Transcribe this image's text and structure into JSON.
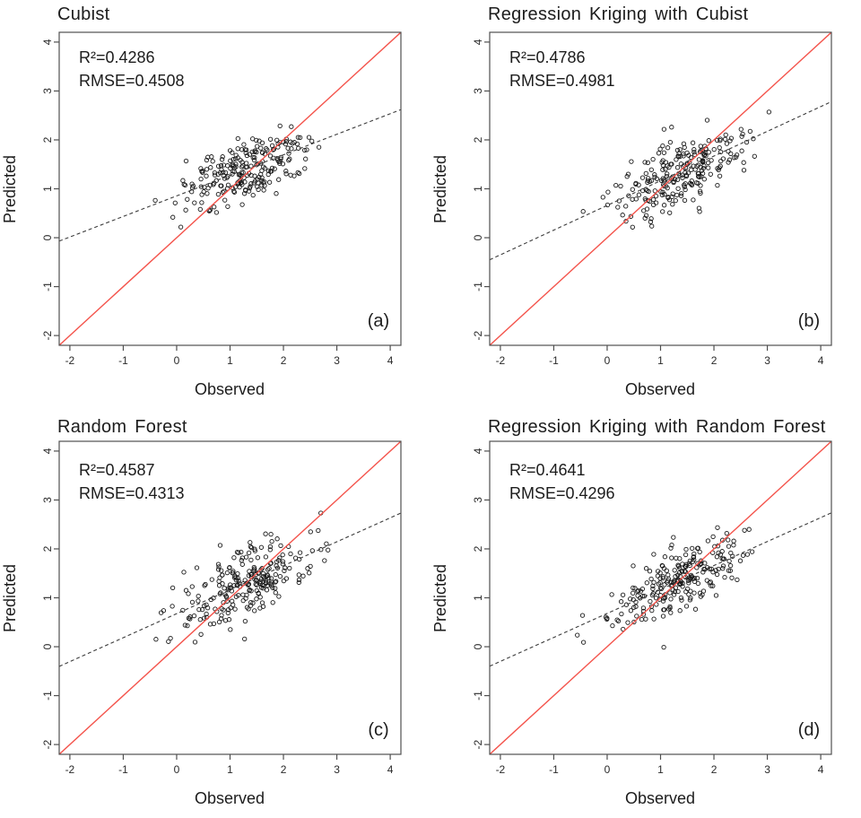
{
  "figure": {
    "background": "#ffffff",
    "axis_color": "#4f4f4f",
    "point_color": "#1a1a1a",
    "one_to_one_color": "#f4544c",
    "regression_color": "#3c3c3c"
  },
  "chart_data": [
    {
      "type": "scatter",
      "panel_label": "(a)",
      "title": "Cubist",
      "r2": 0.4286,
      "rmse": 0.4508,
      "r2_label": "R²=0.4286",
      "rmse_label": "RMSE=0.4508",
      "xlabel": "Observed",
      "ylabel": "Predicted",
      "xlim": [
        -2.2,
        4.2
      ],
      "ylim": [
        -2.2,
        4.2
      ],
      "xticks": [
        -2,
        -1,
        0,
        1,
        2,
        3,
        4
      ],
      "yticks": [
        -2,
        -1,
        0,
        1,
        2,
        3,
        4
      ],
      "lines": {
        "one_to_one": {
          "slope": 1,
          "intercept": 0,
          "style": "solid"
        },
        "regression": {
          "slope": 0.42,
          "intercept": 0.855,
          "style": "dashed"
        }
      },
      "points": {
        "n": 235,
        "seed": 101,
        "obs_mean": 1.35,
        "obs_sd": 0.6,
        "obs_min": -0.7,
        "obs_max": 3.15,
        "noise_sd": 0.3
      }
    },
    {
      "type": "scatter",
      "panel_label": "(b)",
      "title": "Regression Kriging with Cubist",
      "r2": 0.4786,
      "rmse": 0.4981,
      "r2_label": "R²=0.4786",
      "rmse_label": "RMSE=0.4981",
      "xlabel": "Observed",
      "ylabel": "Predicted",
      "xlim": [
        -2.2,
        4.2
      ],
      "ylim": [
        -2.2,
        4.2
      ],
      "xticks": [
        -2,
        -1,
        0,
        1,
        2,
        3,
        4
      ],
      "yticks": [
        -2,
        -1,
        0,
        1,
        2,
        3,
        4
      ],
      "lines": {
        "one_to_one": {
          "slope": 1,
          "intercept": 0,
          "style": "solid"
        },
        "regression": {
          "slope": 0.505,
          "intercept": 0.66,
          "style": "dashed"
        }
      },
      "points": {
        "n": 240,
        "seed": 202,
        "obs_mean": 1.3,
        "obs_sd": 0.64,
        "obs_min": -0.8,
        "obs_max": 3.2,
        "noise_sd": 0.33
      }
    },
    {
      "type": "scatter",
      "panel_label": "(c)",
      "title": "Random Forest",
      "r2": 0.4587,
      "rmse": 0.4313,
      "r2_label": "R²=0.4587",
      "rmse_label": "RMSE=0.4313",
      "xlabel": "Observed",
      "ylabel": "Predicted",
      "xlim": [
        -2.2,
        4.2
      ],
      "ylim": [
        -2.2,
        4.2
      ],
      "xticks": [
        -2,
        -1,
        0,
        1,
        2,
        3,
        4
      ],
      "yticks": [
        -2,
        -1,
        0,
        1,
        2,
        3,
        4
      ],
      "lines": {
        "one_to_one": {
          "slope": 1,
          "intercept": 0,
          "style": "solid"
        },
        "regression": {
          "slope": 0.49,
          "intercept": 0.675,
          "style": "dashed"
        }
      },
      "points": {
        "n": 245,
        "seed": 303,
        "obs_mean": 1.35,
        "obs_sd": 0.63,
        "obs_min": -0.6,
        "obs_max": 3.25,
        "noise_sd": 0.33
      }
    },
    {
      "type": "scatter",
      "panel_label": "(d)",
      "title": "Regression Kriging with Random Forest",
      "r2": 0.4641,
      "rmse": 0.4296,
      "r2_label": "R²=0.4641",
      "rmse_label": "RMSE=0.4296",
      "xlabel": "Observed",
      "ylabel": "Predicted",
      "xlim": [
        -2.2,
        4.2
      ],
      "ylim": [
        -2.2,
        4.2
      ],
      "xticks": [
        -2,
        -1,
        0,
        1,
        2,
        3,
        4
      ],
      "yticks": [
        -2,
        -1,
        0,
        1,
        2,
        3,
        4
      ],
      "lines": {
        "one_to_one": {
          "slope": 1,
          "intercept": 0,
          "style": "solid"
        },
        "regression": {
          "slope": 0.49,
          "intercept": 0.68,
          "style": "dashed"
        }
      },
      "points": {
        "n": 245,
        "seed": 404,
        "obs_mean": 1.35,
        "obs_sd": 0.63,
        "obs_min": -0.6,
        "obs_max": 3.25,
        "noise_sd": 0.32
      }
    }
  ]
}
